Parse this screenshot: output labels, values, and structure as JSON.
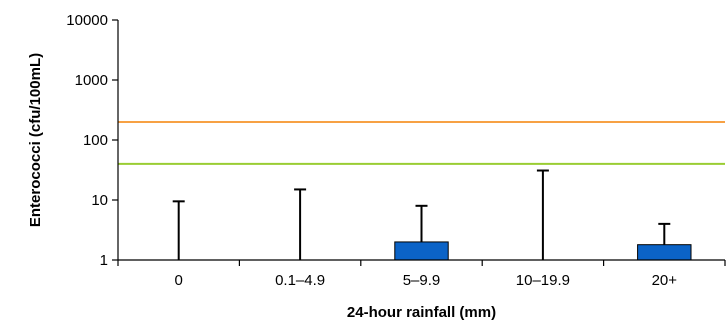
{
  "chart_data": {
    "type": "bar",
    "title": "",
    "xlabel": "24-hour rainfall (mm)",
    "ylabel": "Enterococci (cfu/100mL)",
    "yscale": "log",
    "ylim": [
      1,
      10000
    ],
    "y_ticks": [
      {
        "value": 1,
        "label": "1"
      },
      {
        "value": 10,
        "label": "10"
      },
      {
        "value": 100,
        "label": "100"
      },
      {
        "value": 1000,
        "label": "1000"
      },
      {
        "value": 10000,
        "label": "10000"
      }
    ],
    "categories": [
      "0",
      "0.1–4.9",
      "5–9.9",
      "10–19.9",
      "20+"
    ],
    "values": [
      1,
      1,
      2,
      1,
      1.8
    ],
    "error_upper": [
      9.5,
      15,
      8,
      31,
      4
    ],
    "reference_lines": [
      {
        "value": 200,
        "color": "#f7a144"
      },
      {
        "value": 40,
        "color": "#9acd32"
      }
    ],
    "colors": {
      "bar": "#0b63c7",
      "bar_edge": "#000000",
      "axis": "#000000",
      "error_bar": "#000000"
    },
    "grid": false,
    "legend": "none"
  }
}
